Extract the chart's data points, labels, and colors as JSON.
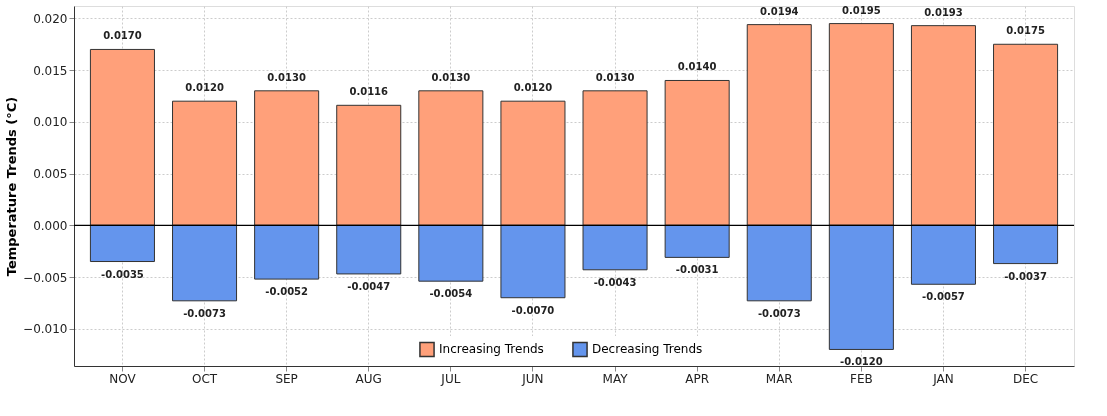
{
  "chart_data": {
    "type": "bar",
    "ylabel": "Temperature Trends (°C)",
    "categories": [
      "NOV",
      "OCT",
      "SEP",
      "AUG",
      "JUL",
      "JUN",
      "MAY",
      "APR",
      "MAR",
      "FEB",
      "JAN",
      "DEC"
    ],
    "series": [
      {
        "name": "Increasing Trends",
        "color": "#ffa07a",
        "values": [
          0.017,
          0.012,
          0.013,
          0.0116,
          0.013,
          0.012,
          0.013,
          0.014,
          0.0194,
          0.0195,
          0.0193,
          0.0175
        ],
        "value_labels": [
          "0.0170",
          "0.0120",
          "0.0130",
          "0.0116",
          "0.0130",
          "0.0120",
          "0.0130",
          "0.0140",
          "0.0194",
          "0.0195",
          "0.0193",
          "0.0175"
        ]
      },
      {
        "name": "Decreasing Trends",
        "color": "#6495ed",
        "values": [
          -0.0035,
          -0.0073,
          -0.0052,
          -0.0047,
          -0.0054,
          -0.007,
          -0.0043,
          -0.0031,
          -0.0073,
          -0.012,
          -0.0057,
          -0.0037
        ],
        "value_labels": [
          "-0.0035",
          "-0.0073",
          "-0.0052",
          "-0.0047",
          "-0.0054",
          "-0.0070",
          "-0.0043",
          "-0.0031",
          "-0.0073",
          "-0.0120",
          "-0.0057",
          "-0.0037"
        ]
      }
    ],
    "stacked": true,
    "ylim": [
      -0.0136,
      0.0212
    ],
    "yticks": [
      {
        "value": -0.01,
        "label": "−0.010"
      },
      {
        "value": -0.005,
        "label": "−0.005"
      },
      {
        "value": 0.0,
        "label": "0.000"
      },
      {
        "value": 0.005,
        "label": "0.005"
      },
      {
        "value": 0.01,
        "label": "0.010"
      },
      {
        "value": 0.015,
        "label": "0.015"
      },
      {
        "value": 0.02,
        "label": "0.020"
      }
    ],
    "ref_lines": [
      {
        "axis": "y",
        "value": 0,
        "color": "#000000"
      }
    ],
    "grid": true,
    "legend": "bottom"
  }
}
